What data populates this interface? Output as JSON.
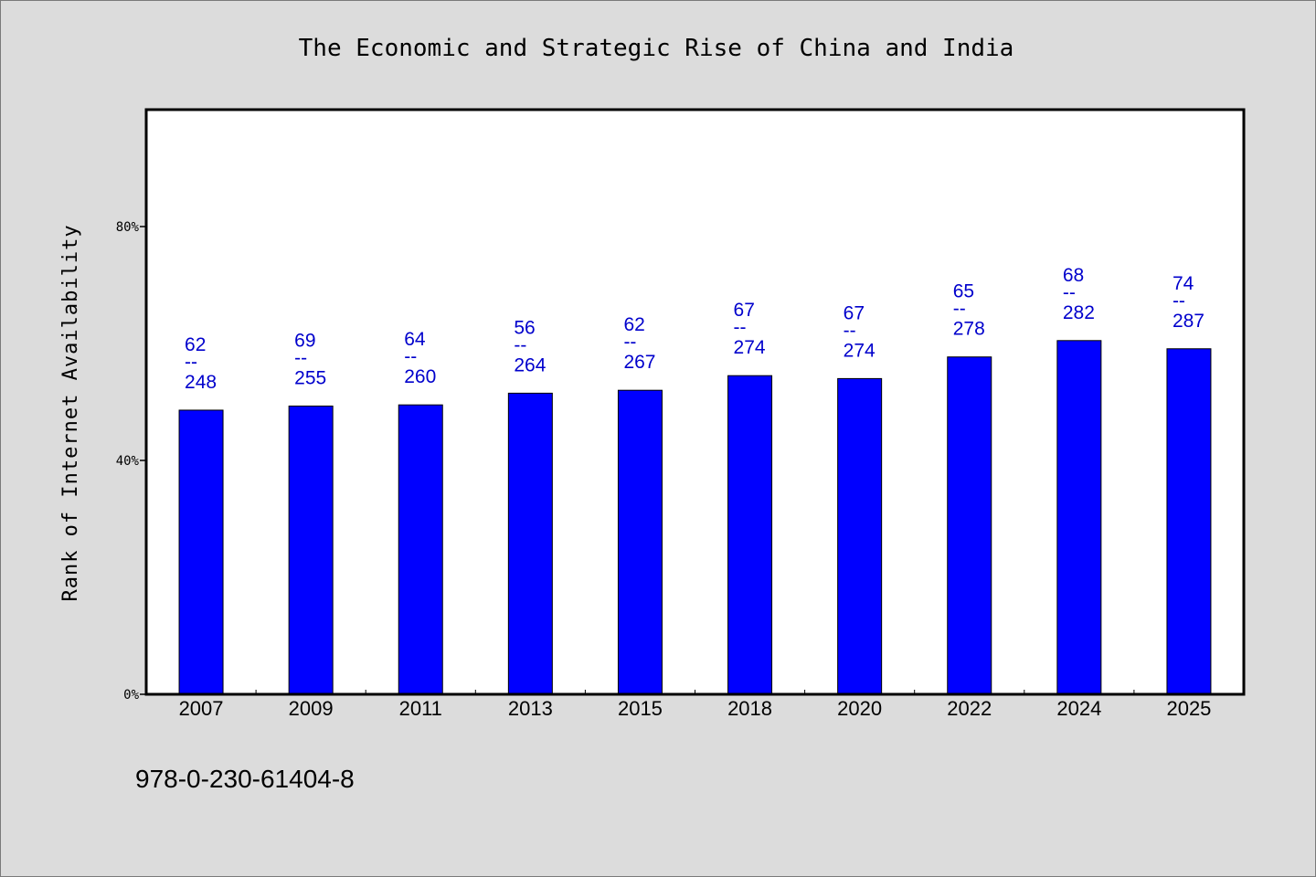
{
  "chart_data": {
    "type": "bar",
    "title": "The Economic and Strategic Rise of China and India",
    "xlabel": "",
    "ylabel": "Rank of Internet Availability",
    "ylim": [
      0,
      100
    ],
    "y_ticks": [
      0,
      40,
      80
    ],
    "y_tick_labels": [
      "0%",
      "40%",
      "80%"
    ],
    "categories": [
      "2007",
      "2009",
      "2011",
      "2013",
      "2015",
      "2018",
      "2020",
      "2022",
      "2024",
      "2025"
    ],
    "values": [
      48.6,
      49.3,
      49.5,
      51.5,
      52.0,
      54.5,
      54.0,
      57.7,
      60.5,
      59.1
    ],
    "data_labels": [
      {
        "top": "62",
        "sep": "--",
        "bottom": "248"
      },
      {
        "top": "69",
        "sep": "--",
        "bottom": "255"
      },
      {
        "top": "64",
        "sep": "--",
        "bottom": "260"
      },
      {
        "top": "56",
        "sep": "--",
        "bottom": "264"
      },
      {
        "top": "62",
        "sep": "--",
        "bottom": "267"
      },
      {
        "top": "67",
        "sep": "--",
        "bottom": "274"
      },
      {
        "top": "67",
        "sep": "--",
        "bottom": "274"
      },
      {
        "top": "65",
        "sep": "--",
        "bottom": "278"
      },
      {
        "top": "68",
        "sep": "--",
        "bottom": "282"
      },
      {
        "top": "74",
        "sep": "--",
        "bottom": "287"
      }
    ],
    "grid": false,
    "legend": "none",
    "colors": {
      "bar": "#0000ff",
      "bar_edge": "#000000",
      "data_label": "#0000cc",
      "plot_bg": "#ffffff",
      "figure_bg": "#dcdcdc"
    }
  },
  "footer": {
    "isbn": "978-0-230-61404-8"
  }
}
